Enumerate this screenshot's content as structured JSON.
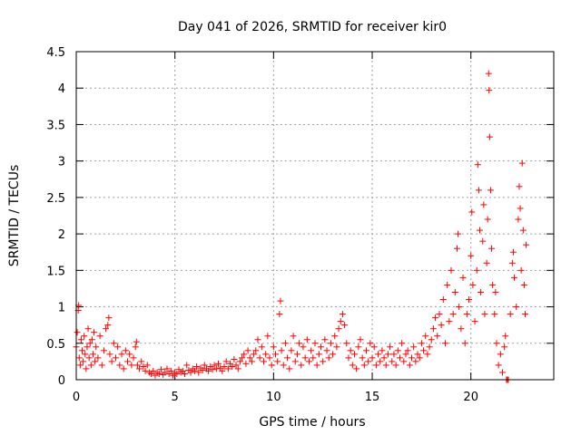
{
  "chart_data": {
    "type": "scatter",
    "title": "Day 041 of 2026, SRMTID for receiver kir0",
    "xlabel": "GPS time / hours",
    "ylabel": "SRMTID / TECUs",
    "xlim": [
      0,
      24.2
    ],
    "ylim": [
      0,
      4.5
    ],
    "x_ticks": [
      0,
      5,
      10,
      15,
      20
    ],
    "x_tick_labels": [
      "0",
      "5",
      "10",
      "15",
      "20"
    ],
    "y_ticks": [
      0,
      0.5,
      1,
      1.5,
      2,
      2.5,
      3,
      3.5,
      4,
      4.5
    ],
    "y_tick_labels": [
      "0",
      "0.5",
      "1",
      "1.5",
      "2",
      "2.5",
      "3",
      "3.5",
      "4",
      "4.5"
    ],
    "grid": true,
    "marker": "+",
    "color": "#ff0000",
    "series": [
      {
        "name": "SRMTID",
        "points": [
          [
            0.0,
            0.45
          ],
          [
            0.05,
            0.65
          ],
          [
            0.1,
            0.95
          ],
          [
            0.12,
            1.02
          ],
          [
            0.15,
            0.3
          ],
          [
            0.2,
            0.2
          ],
          [
            0.25,
            0.55
          ],
          [
            0.3,
            0.4
          ],
          [
            0.35,
            0.25
          ],
          [
            0.4,
            0.6
          ],
          [
            0.45,
            0.35
          ],
          [
            0.5,
            0.15
          ],
          [
            0.55,
            0.45
          ],
          [
            0.6,
            0.7
          ],
          [
            0.65,
            0.3
          ],
          [
            0.7,
            0.5
          ],
          [
            0.75,
            0.2
          ],
          [
            0.8,
            0.55
          ],
          [
            0.85,
            0.35
          ],
          [
            0.9,
            0.65
          ],
          [
            0.95,
            0.25
          ],
          [
            1.0,
            0.45
          ],
          [
            1.1,
            0.3
          ],
          [
            1.2,
            0.6
          ],
          [
            1.3,
            0.2
          ],
          [
            1.4,
            0.4
          ],
          [
            1.5,
            0.7
          ],
          [
            1.6,
            0.75
          ],
          [
            1.65,
            0.85
          ],
          [
            1.7,
            0.35
          ],
          [
            1.8,
            0.25
          ],
          [
            1.9,
            0.5
          ],
          [
            2.0,
            0.3
          ],
          [
            2.1,
            0.45
          ],
          [
            2.2,
            0.2
          ],
          [
            2.3,
            0.35
          ],
          [
            2.4,
            0.15
          ],
          [
            2.5,
            0.4
          ],
          [
            2.6,
            0.25
          ],
          [
            2.7,
            0.35
          ],
          [
            2.8,
            0.2
          ],
          [
            2.9,
            0.3
          ],
          [
            3.0,
            0.45
          ],
          [
            3.05,
            0.52
          ],
          [
            3.1,
            0.2
          ],
          [
            3.2,
            0.15
          ],
          [
            3.3,
            0.25
          ],
          [
            3.4,
            0.18
          ],
          [
            3.5,
            0.12
          ],
          [
            3.6,
            0.2
          ],
          [
            3.7,
            0.1
          ],
          [
            3.8,
            0.08
          ],
          [
            3.9,
            0.12
          ],
          [
            4.0,
            0.06
          ],
          [
            4.1,
            0.1
          ],
          [
            4.2,
            0.08
          ],
          [
            4.3,
            0.14
          ],
          [
            4.4,
            0.07
          ],
          [
            4.5,
            0.1
          ],
          [
            4.6,
            0.15
          ],
          [
            4.7,
            0.08
          ],
          [
            4.8,
            0.12
          ],
          [
            4.9,
            0.06
          ],
          [
            5.0,
            0.1
          ],
          [
            5.1,
            0.08
          ],
          [
            5.2,
            0.14
          ],
          [
            5.3,
            0.1
          ],
          [
            5.4,
            0.12
          ],
          [
            5.5,
            0.08
          ],
          [
            5.6,
            0.2
          ],
          [
            5.7,
            0.13
          ],
          [
            5.8,
            0.1
          ],
          [
            5.9,
            0.15
          ],
          [
            6.0,
            0.12
          ],
          [
            6.1,
            0.18
          ],
          [
            6.2,
            0.1
          ],
          [
            6.3,
            0.16
          ],
          [
            6.4,
            0.13
          ],
          [
            6.5,
            0.2
          ],
          [
            6.6,
            0.15
          ],
          [
            6.7,
            0.12
          ],
          [
            6.8,
            0.18
          ],
          [
            6.9,
            0.14
          ],
          [
            7.0,
            0.2
          ],
          [
            7.1,
            0.15
          ],
          [
            7.2,
            0.22
          ],
          [
            7.3,
            0.16
          ],
          [
            7.4,
            0.12
          ],
          [
            7.5,
            0.18
          ],
          [
            7.6,
            0.25
          ],
          [
            7.7,
            0.15
          ],
          [
            7.8,
            0.22
          ],
          [
            7.9,
            0.18
          ],
          [
            8.0,
            0.28
          ],
          [
            8.1,
            0.2
          ],
          [
            8.2,
            0.15
          ],
          [
            8.3,
            0.25
          ],
          [
            8.4,
            0.3
          ],
          [
            8.5,
            0.35
          ],
          [
            8.6,
            0.22
          ],
          [
            8.7,
            0.4
          ],
          [
            8.8,
            0.3
          ],
          [
            8.9,
            0.25
          ],
          [
            9.0,
            0.35
          ],
          [
            9.1,
            0.4
          ],
          [
            9.2,
            0.55
          ],
          [
            9.3,
            0.3
          ],
          [
            9.4,
            0.45
          ],
          [
            9.5,
            0.25
          ],
          [
            9.6,
            0.35
          ],
          [
            9.7,
            0.6
          ],
          [
            9.8,
            0.3
          ],
          [
            9.9,
            0.2
          ],
          [
            10.0,
            0.45
          ],
          [
            10.1,
            0.35
          ],
          [
            10.2,
            0.25
          ],
          [
            10.3,
            0.9
          ],
          [
            10.35,
            1.08
          ],
          [
            10.4,
            0.4
          ],
          [
            10.5,
            0.2
          ],
          [
            10.6,
            0.5
          ],
          [
            10.7,
            0.3
          ],
          [
            10.8,
            0.15
          ],
          [
            10.9,
            0.4
          ],
          [
            11.0,
            0.6
          ],
          [
            11.1,
            0.25
          ],
          [
            11.2,
            0.35
          ],
          [
            11.3,
            0.5
          ],
          [
            11.4,
            0.2
          ],
          [
            11.5,
            0.45
          ],
          [
            11.6,
            0.3
          ],
          [
            11.7,
            0.55
          ],
          [
            11.8,
            0.25
          ],
          [
            11.9,
            0.4
          ],
          [
            12.0,
            0.3
          ],
          [
            12.1,
            0.5
          ],
          [
            12.2,
            0.2
          ],
          [
            12.3,
            0.35
          ],
          [
            12.4,
            0.45
          ],
          [
            12.5,
            0.25
          ],
          [
            12.6,
            0.55
          ],
          [
            12.7,
            0.4
          ],
          [
            12.8,
            0.3
          ],
          [
            12.9,
            0.5
          ],
          [
            13.0,
            0.35
          ],
          [
            13.1,
            0.6
          ],
          [
            13.2,
            0.45
          ],
          [
            13.3,
            0.7
          ],
          [
            13.4,
            0.8
          ],
          [
            13.5,
            0.9
          ],
          [
            13.6,
            0.75
          ],
          [
            13.7,
            0.5
          ],
          [
            13.8,
            0.3
          ],
          [
            13.9,
            0.4
          ],
          [
            14.0,
            0.2
          ],
          [
            14.1,
            0.35
          ],
          [
            14.2,
            0.15
          ],
          [
            14.3,
            0.45
          ],
          [
            14.4,
            0.55
          ],
          [
            14.5,
            0.3
          ],
          [
            14.6,
            0.2
          ],
          [
            14.7,
            0.4
          ],
          [
            14.8,
            0.25
          ],
          [
            14.9,
            0.5
          ],
          [
            15.0,
            0.3
          ],
          [
            15.1,
            0.45
          ],
          [
            15.2,
            0.2
          ],
          [
            15.3,
            0.35
          ],
          [
            15.4,
            0.25
          ],
          [
            15.5,
            0.4
          ],
          [
            15.6,
            0.3
          ],
          [
            15.7,
            0.2
          ],
          [
            15.8,
            0.35
          ],
          [
            15.9,
            0.45
          ],
          [
            16.0,
            0.25
          ],
          [
            16.1,
            0.35
          ],
          [
            16.2,
            0.2
          ],
          [
            16.3,
            0.4
          ],
          [
            16.4,
            0.3
          ],
          [
            16.5,
            0.5
          ],
          [
            16.6,
            0.25
          ],
          [
            16.7,
            0.35
          ],
          [
            16.8,
            0.4
          ],
          [
            16.9,
            0.2
          ],
          [
            17.0,
            0.3
          ],
          [
            17.1,
            0.45
          ],
          [
            17.2,
            0.25
          ],
          [
            17.3,
            0.35
          ],
          [
            17.4,
            0.3
          ],
          [
            17.5,
            0.5
          ],
          [
            17.6,
            0.4
          ],
          [
            17.7,
            0.6
          ],
          [
            17.8,
            0.35
          ],
          [
            17.9,
            0.45
          ],
          [
            18.0,
            0.55
          ],
          [
            18.1,
            0.7
          ],
          [
            18.2,
            0.85
          ],
          [
            18.3,
            0.6
          ],
          [
            18.4,
            0.9
          ],
          [
            18.5,
            0.75
          ],
          [
            18.6,
            1.1
          ],
          [
            18.7,
            0.5
          ],
          [
            18.8,
            1.3
          ],
          [
            18.9,
            0.8
          ],
          [
            19.0,
            1.5
          ],
          [
            19.1,
            0.9
          ],
          [
            19.2,
            1.2
          ],
          [
            19.3,
            1.8
          ],
          [
            19.35,
            2.0
          ],
          [
            19.4,
            1.0
          ],
          [
            19.5,
            0.7
          ],
          [
            19.6,
            1.4
          ],
          [
            19.7,
            0.5
          ],
          [
            19.8,
            0.9
          ],
          [
            19.9,
            1.1
          ],
          [
            20.0,
            1.7
          ],
          [
            20.05,
            2.3
          ],
          [
            20.1,
            1.3
          ],
          [
            20.2,
            0.8
          ],
          [
            20.3,
            1.5
          ],
          [
            20.35,
            2.95
          ],
          [
            20.4,
            2.6
          ],
          [
            20.45,
            2.05
          ],
          [
            20.5,
            1.2
          ],
          [
            20.6,
            1.9
          ],
          [
            20.65,
            2.4
          ],
          [
            20.7,
            0.9
          ],
          [
            20.8,
            1.6
          ],
          [
            20.85,
            2.2
          ],
          [
            20.9,
            4.2
          ],
          [
            20.92,
            3.97
          ],
          [
            20.95,
            3.33
          ],
          [
            21.0,
            2.6
          ],
          [
            21.05,
            1.8
          ],
          [
            21.1,
            1.3
          ],
          [
            21.2,
            0.9
          ],
          [
            21.25,
            1.2
          ],
          [
            21.3,
            0.5
          ],
          [
            21.4,
            0.2
          ],
          [
            21.5,
            0.35
          ],
          [
            21.6,
            0.1
          ],
          [
            21.7,
            0.45
          ],
          [
            21.75,
            0.6
          ],
          [
            21.8,
            0.0
          ],
          [
            21.85,
            0.0
          ],
          [
            21.9,
            0.0
          ],
          [
            22.0,
            0.9
          ],
          [
            22.1,
            1.6
          ],
          [
            22.15,
            1.75
          ],
          [
            22.2,
            1.4
          ],
          [
            22.3,
            1.0
          ],
          [
            22.4,
            2.2
          ],
          [
            22.45,
            2.65
          ],
          [
            22.5,
            2.35
          ],
          [
            22.55,
            1.5
          ],
          [
            22.6,
            2.97
          ],
          [
            22.65,
            2.05
          ],
          [
            22.7,
            1.3
          ],
          [
            22.75,
            0.9
          ],
          [
            22.8,
            1.85
          ]
        ]
      }
    ]
  }
}
